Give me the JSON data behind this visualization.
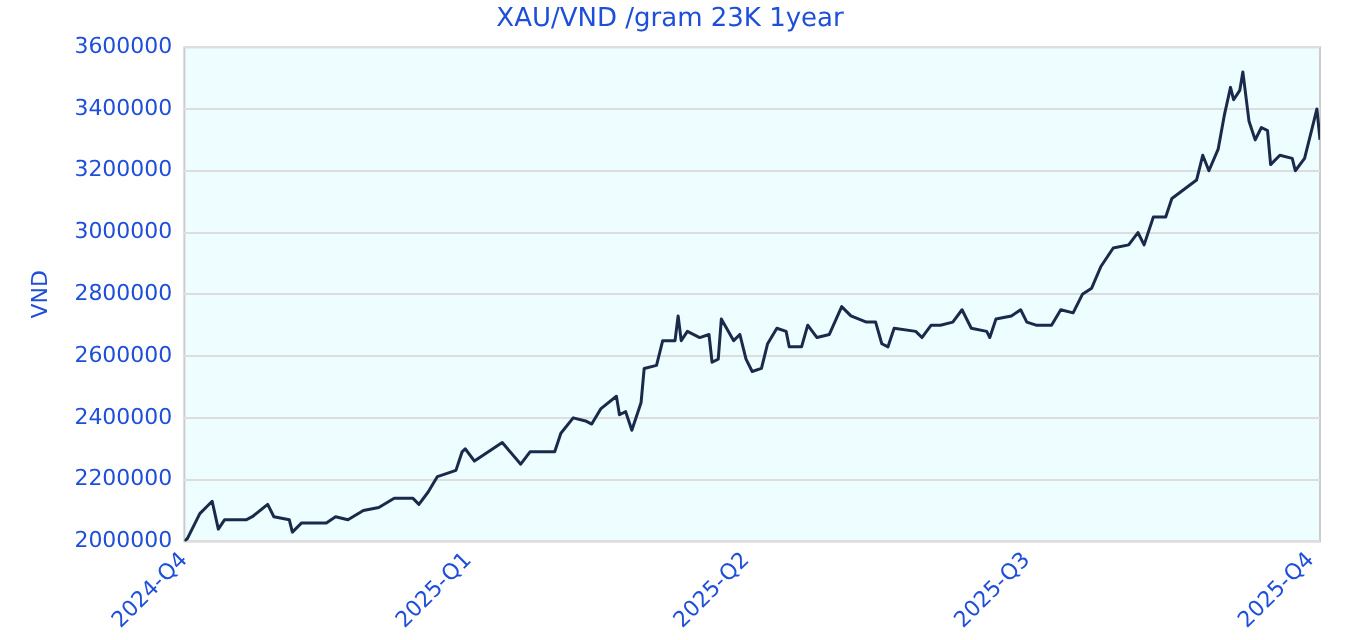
{
  "chart_data": {
    "type": "line",
    "title": "XAU/VND /gram 23K 1year",
    "ylabel": "VND",
    "xlim": [
      "2024-10-01",
      "2025-10-04"
    ],
    "xticks": [
      {
        "value": "2024-10-01",
        "label": "2024-Q4"
      },
      {
        "value": "2025-01-01",
        "label": "2025-Q1"
      },
      {
        "value": "2025-04-01",
        "label": "2025-Q2"
      },
      {
        "value": "2025-07-01",
        "label": "2025-Q3"
      },
      {
        "value": "2025-10-01",
        "label": "2025-Q4"
      }
    ],
    "ylim": [
      2000000,
      3600000
    ],
    "yticks": [
      2000000,
      2200000,
      2400000,
      2600000,
      2800000,
      3000000,
      3200000,
      3400000,
      3600000
    ],
    "grid": "y",
    "legend": false,
    "marker": "none",
    "line_style": "solid",
    "series": [
      {
        "color": "#1a2a4a",
        "x": [
          "2024-10-01",
          "2024-10-02",
          "2024-10-06",
          "2024-10-10",
          "2024-10-12",
          "2024-10-14",
          "2024-10-21",
          "2024-10-23",
          "2024-10-28",
          "2024-10-30",
          "2024-11-04",
          "2024-11-05",
          "2024-11-08",
          "2024-11-16",
          "2024-11-19",
          "2024-11-23",
          "2024-11-28",
          "2024-12-03",
          "2024-12-08",
          "2024-12-14",
          "2024-12-16",
          "2024-12-19",
          "2024-12-22",
          "2024-12-28",
          "2024-12-30",
          "2024-12-31",
          "2025-01-03",
          "2025-01-12",
          "2025-01-18",
          "2025-01-21",
          "2025-01-29",
          "2025-01-31",
          "2025-02-04",
          "2025-02-08",
          "2025-02-10",
          "2025-02-13",
          "2025-02-18",
          "2025-02-19",
          "2025-02-21",
          "2025-02-23",
          "2025-02-26",
          "2025-02-27",
          "2025-03-03",
          "2025-03-05",
          "2025-03-09",
          "2025-03-10",
          "2025-03-11",
          "2025-03-13",
          "2025-03-17",
          "2025-03-20",
          "2025-03-21",
          "2025-03-23",
          "2025-03-24",
          "2025-03-28",
          "2025-03-30",
          "2025-04-01",
          "2025-04-03",
          "2025-04-06",
          "2025-04-08",
          "2025-04-11",
          "2025-04-14",
          "2025-04-15",
          "2025-04-19",
          "2025-04-21",
          "2025-04-24",
          "2025-04-28",
          "2025-05-02",
          "2025-05-05",
          "2025-05-10",
          "2025-05-13",
          "2025-05-15",
          "2025-05-17",
          "2025-05-19",
          "2025-05-26",
          "2025-05-28",
          "2025-05-31",
          "2025-06-03",
          "2025-06-07",
          "2025-06-10",
          "2025-06-13",
          "2025-06-18",
          "2025-06-19",
          "2025-06-21",
          "2025-06-26",
          "2025-06-29",
          "2025-07-01",
          "2025-07-04",
          "2025-07-09",
          "2025-07-12",
          "2025-07-16",
          "2025-07-19",
          "2025-07-22",
          "2025-07-25",
          "2025-07-27",
          "2025-07-29",
          "2025-08-03",
          "2025-08-06",
          "2025-08-08",
          "2025-08-11",
          "2025-08-15",
          "2025-08-17",
          "2025-08-21",
          "2025-08-25",
          "2025-08-27",
          "2025-08-29",
          "2025-09-01",
          "2025-09-03",
          "2025-09-05",
          "2025-09-06",
          "2025-09-08",
          "2025-09-09",
          "2025-09-11",
          "2025-09-13",
          "2025-09-15",
          "2025-09-17",
          "2025-09-18",
          "2025-09-21",
          "2025-09-25",
          "2025-09-26",
          "2025-09-29",
          "2025-10-02",
          "2025-10-03",
          "2025-10-04"
        ],
        "values": [
          2000000,
          2010000,
          2090000,
          2130000,
          2040000,
          2070000,
          2070000,
          2080000,
          2120000,
          2080000,
          2070000,
          2030000,
          2060000,
          2060000,
          2080000,
          2070000,
          2100000,
          2110000,
          2140000,
          2140000,
          2120000,
          2160000,
          2210000,
          2230000,
          2290000,
          2300000,
          2260000,
          2320000,
          2250000,
          2290000,
          2290000,
          2350000,
          2400000,
          2390000,
          2380000,
          2430000,
          2470000,
          2410000,
          2420000,
          2360000,
          2450000,
          2560000,
          2570000,
          2650000,
          2650000,
          2730000,
          2650000,
          2680000,
          2660000,
          2670000,
          2580000,
          2590000,
          2720000,
          2650000,
          2670000,
          2590000,
          2550000,
          2560000,
          2640000,
          2690000,
          2680000,
          2630000,
          2630000,
          2700000,
          2660000,
          2670000,
          2760000,
          2730000,
          2710000,
          2710000,
          2640000,
          2630000,
          2690000,
          2680000,
          2660000,
          2700000,
          2700000,
          2710000,
          2750000,
          2690000,
          2680000,
          2660000,
          2720000,
          2730000,
          2750000,
          2710000,
          2700000,
          2700000,
          2750000,
          2740000,
          2800000,
          2820000,
          2890000,
          2920000,
          2950000,
          2960000,
          3000000,
          2960000,
          3050000,
          3050000,
          3110000,
          3140000,
          3170000,
          3250000,
          3200000,
          3270000,
          3380000,
          3470000,
          3430000,
          3460000,
          3520000,
          3360000,
          3300000,
          3340000,
          3330000,
          3220000,
          3250000,
          3240000,
          3200000,
          3240000,
          3360000,
          3400000,
          3300000
        ]
      }
    ]
  }
}
